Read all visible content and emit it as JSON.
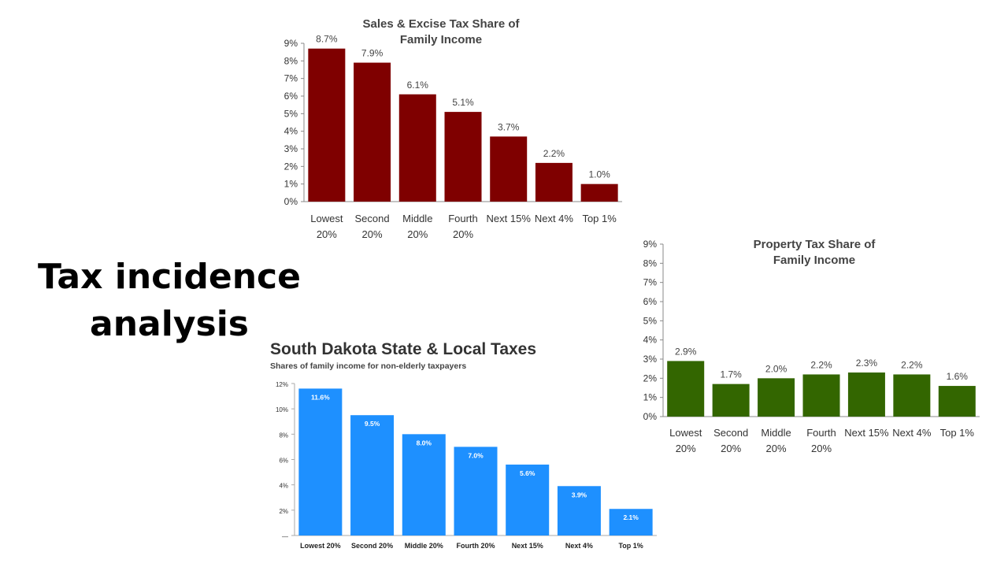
{
  "slide": {
    "title_line1": "Tax incidence",
    "title_line2": "analysis"
  },
  "chart_data": [
    {
      "id": "sales",
      "type": "bar",
      "title_line1": "Sales & Excise Tax Share of",
      "title_line2": "Family Income",
      "categories": [
        [
          "Lowest",
          "20%"
        ],
        [
          "Second",
          "20%"
        ],
        [
          "Middle",
          "20%"
        ],
        [
          "Fourth",
          "20%"
        ],
        [
          "Next 15%"
        ],
        [
          "Next 4%"
        ],
        [
          "Top 1%"
        ]
      ],
      "values": [
        8.7,
        7.9,
        6.1,
        5.1,
        3.7,
        2.2,
        1.0
      ],
      "labels": [
        "8.7%",
        "7.9%",
        "6.1%",
        "5.1%",
        "3.7%",
        "2.2%",
        "1.0%"
      ],
      "yticks": [
        "0%",
        "1%",
        "2%",
        "3%",
        "4%",
        "5%",
        "6%",
        "7%",
        "8%",
        "9%"
      ],
      "ylim": [
        0,
        9
      ],
      "color": "#7f0000"
    },
    {
      "id": "property",
      "type": "bar",
      "title_line1": "Property Tax Share of",
      "title_line2": "Family Income",
      "categories": [
        [
          "Lowest",
          "20%"
        ],
        [
          "Second",
          "20%"
        ],
        [
          "Middle",
          "20%"
        ],
        [
          "Fourth",
          "20%"
        ],
        [
          "Next 15%"
        ],
        [
          "Next 4%"
        ],
        [
          "Top 1%"
        ]
      ],
      "values": [
        2.9,
        1.7,
        2.0,
        2.2,
        2.3,
        2.2,
        1.6
      ],
      "labels": [
        "2.9%",
        "1.7%",
        "2.0%",
        "2.2%",
        "2.3%",
        "2.2%",
        "1.6%"
      ],
      "yticks": [
        "0%",
        "1%",
        "2%",
        "3%",
        "4%",
        "5%",
        "6%",
        "7%",
        "8%",
        "9%"
      ],
      "ylim": [
        0,
        9
      ],
      "color": "#336600"
    },
    {
      "id": "sd",
      "type": "bar",
      "title": "South Dakota State & Local Taxes",
      "subtitle": "Shares of family income for non-elderly taxpayers",
      "categories": [
        "Lowest 20%",
        "Second 20%",
        "Middle 20%",
        "Fourth 20%",
        "Next 15%",
        "Next 4%",
        "Top 1%"
      ],
      "values": [
        11.6,
        9.5,
        8.0,
        7.0,
        5.6,
        3.9,
        2.1
      ],
      "labels": [
        "11.6%",
        "9.5%",
        "8.0%",
        "7.0%",
        "5.6%",
        "3.9%",
        "2.1%"
      ],
      "yticks": [
        "—",
        "2%",
        "4%",
        "6%",
        "8%",
        "10%",
        "12%"
      ],
      "ylim": [
        0,
        12
      ],
      "color": "#1e90ff"
    }
  ]
}
